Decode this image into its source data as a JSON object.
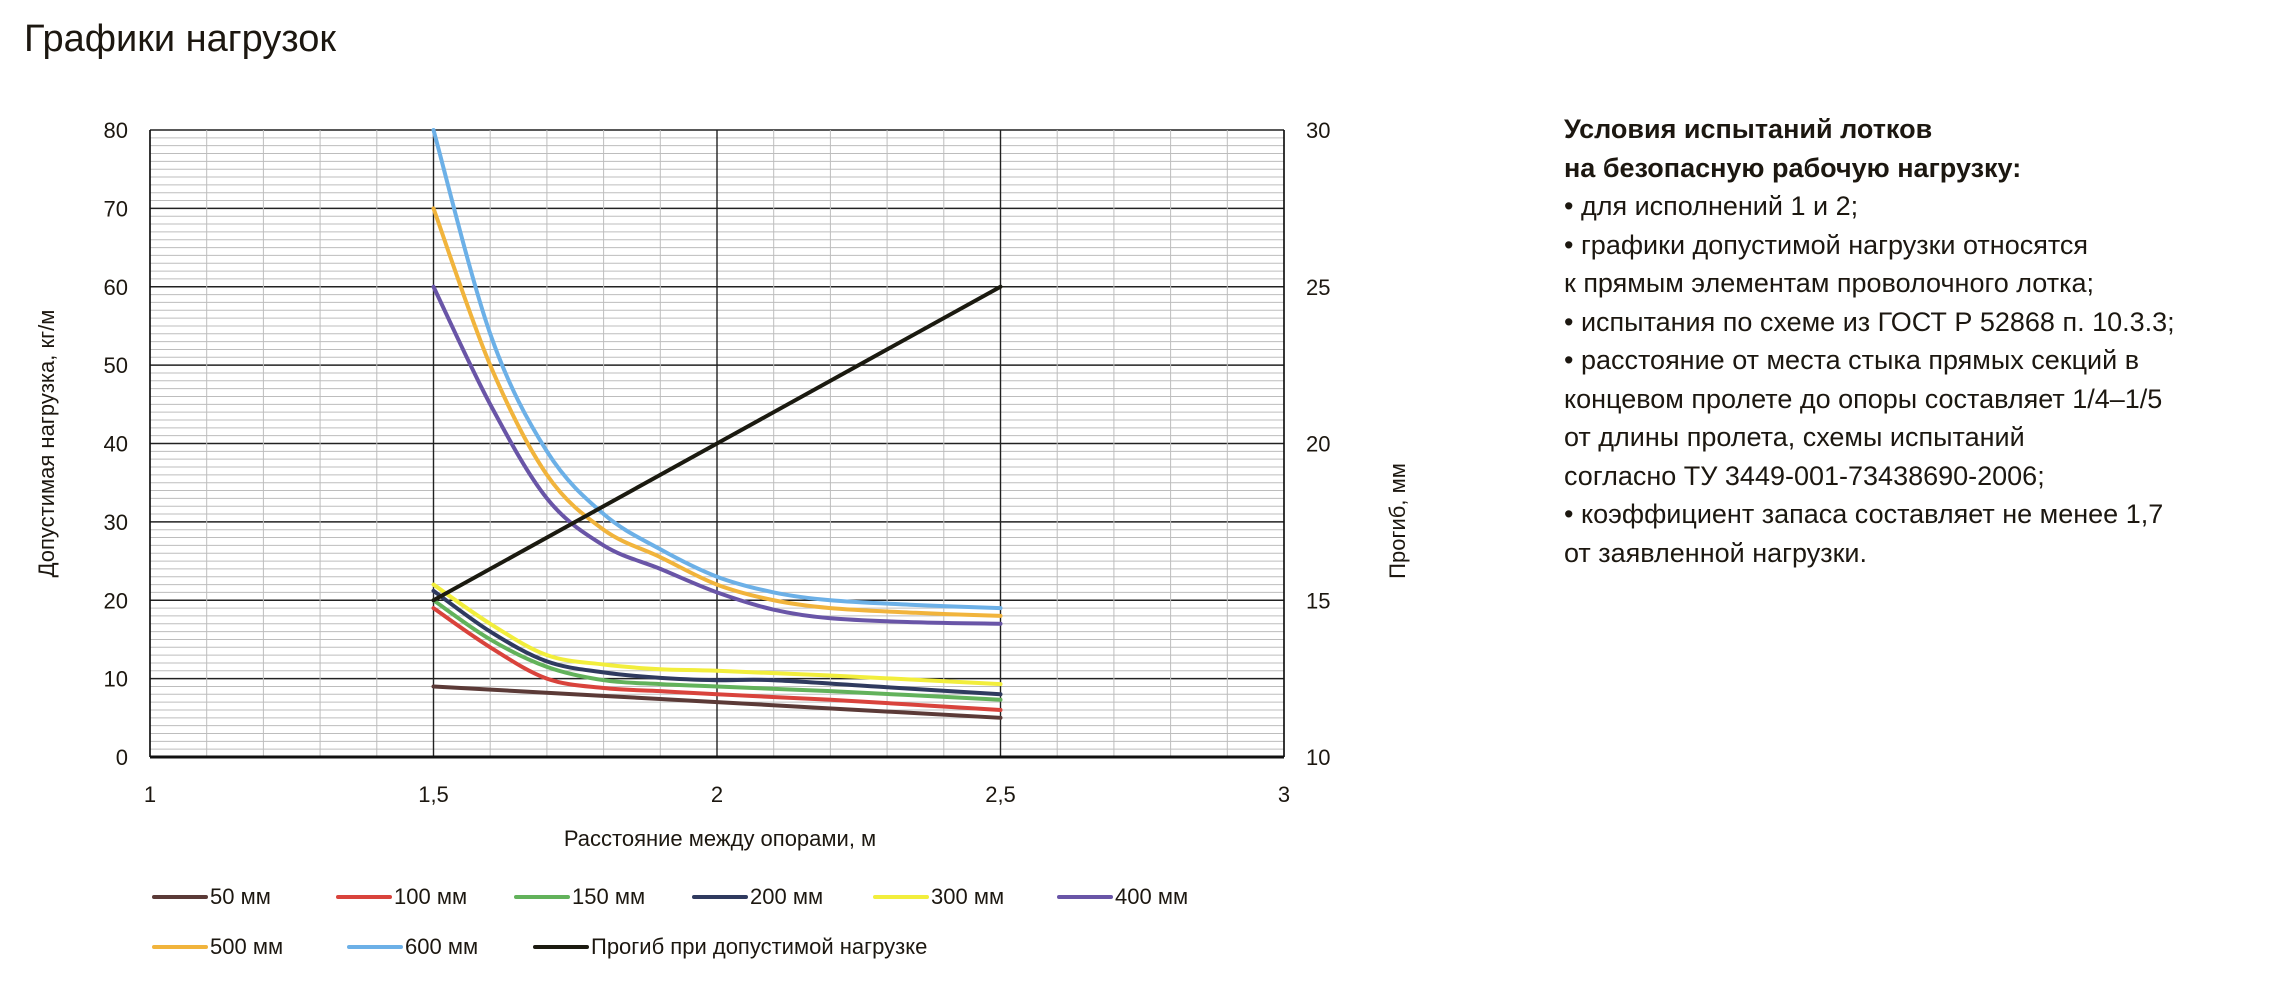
{
  "title": "Графики нагрузок",
  "notes": {
    "heading": [
      "Условия испытаний лотков",
      "на безопасную рабочую нагрузку:"
    ],
    "lines": [
      "• для исполнений 1 и 2;",
      "• графики допустимой нагрузки относятся",
      "к прямым элементам проволочного лотка;",
      "• испытания по схеме из ГОСТ Р 52868 п. 10.3.3;",
      "• расстояние от места стыка прямых секций в",
      "концевом пролете до опоры составляет 1/4–1/5",
      "от длины пролета, схемы испытаний",
      "согласно ТУ 3449-001-73438690-2006;",
      "• коэффициент запаса составляет не менее 1,7",
      "от заявленной нагрузки."
    ]
  },
  "chart_data": {
    "type": "line",
    "xlabel": "Расстояние между опорами, м",
    "ylabel": "Допустимая нагрузка,  кг/м",
    "y2label": "Прогиб, мм",
    "xlim": [
      1,
      3
    ],
    "ylim": [
      0,
      80
    ],
    "y2lim": [
      10,
      30
    ],
    "xticks": [
      1,
      1.5,
      2,
      2.5,
      3
    ],
    "xtick_labels": [
      "1",
      "1,5",
      "2",
      "2,5",
      "3"
    ],
    "yticks": [
      0,
      10,
      20,
      30,
      40,
      50,
      60,
      70,
      80
    ],
    "y2ticks": [
      10,
      15,
      20,
      25,
      30
    ],
    "grid": true,
    "legend_position": "bottom",
    "series": [
      {
        "name": "50 мм",
        "color": "#5b3a37",
        "axis": "left",
        "x": [
          1.5,
          2,
          2.5
        ],
        "y": [
          9,
          7,
          5
        ]
      },
      {
        "name": "100 мм",
        "color": "#d9433c",
        "axis": "left",
        "x": [
          1.5,
          1.6,
          1.7,
          1.8,
          1.9,
          2,
          2.2,
          2.5
        ],
        "y": [
          19,
          14,
          10,
          8.8,
          8.4,
          8,
          7.3,
          6
        ]
      },
      {
        "name": "150 мм",
        "color": "#62b25b",
        "axis": "left",
        "x": [
          1.5,
          1.6,
          1.7,
          1.8,
          1.9,
          2,
          2.2,
          2.5
        ],
        "y": [
          20,
          15,
          11.5,
          9.8,
          9.3,
          9,
          8.4,
          7.3
        ]
      },
      {
        "name": "200 мм",
        "color": "#2f3a5f",
        "axis": "left",
        "x": [
          1.5,
          1.6,
          1.7,
          1.8,
          1.9,
          2,
          2.1,
          2.3,
          2.5
        ],
        "y": [
          21.2,
          16,
          12.2,
          10.8,
          10.1,
          9.8,
          9.8,
          8.9,
          8
        ]
      },
      {
        "name": "300 мм",
        "color": "#f2ee3c",
        "axis": "left",
        "x": [
          1.5,
          1.6,
          1.7,
          1.8,
          1.9,
          2,
          2.2,
          2.5
        ],
        "y": [
          22,
          17,
          13,
          11.8,
          11.2,
          11,
          10.4,
          9.3
        ]
      },
      {
        "name": "400 мм",
        "color": "#6955a7",
        "axis": "left",
        "x": [
          1.5,
          1.6,
          1.7,
          1.8,
          1.9,
          2,
          2.1,
          2.2,
          2.35,
          2.5
        ],
        "y": [
          60,
          45,
          33,
          27,
          24,
          21,
          18.8,
          17.7,
          17.2,
          17
        ]
      },
      {
        "name": "500 мм",
        "color": "#f1b43c",
        "axis": "left",
        "x": [
          1.5,
          1.6,
          1.7,
          1.8,
          1.9,
          2,
          2.1,
          2.2,
          2.35,
          2.5
        ],
        "y": [
          70,
          50,
          36,
          29,
          25.5,
          22,
          20,
          19,
          18.4,
          18
        ]
      },
      {
        "name": "600 мм",
        "color": "#6cb0e7",
        "axis": "left",
        "x": [
          1.5,
          1.6,
          1.7,
          1.8,
          1.9,
          2,
          2.1,
          2.2,
          2.35,
          2.5
        ],
        "y": [
          80,
          54,
          39,
          31,
          26.5,
          23,
          21,
          20,
          19.4,
          19
        ]
      },
      {
        "name": "Прогиб при допустимой нагрузке",
        "color": "#1b1a10",
        "axis": "right",
        "x": [
          1.5,
          2.5
        ],
        "y": [
          15,
          25
        ]
      }
    ]
  }
}
